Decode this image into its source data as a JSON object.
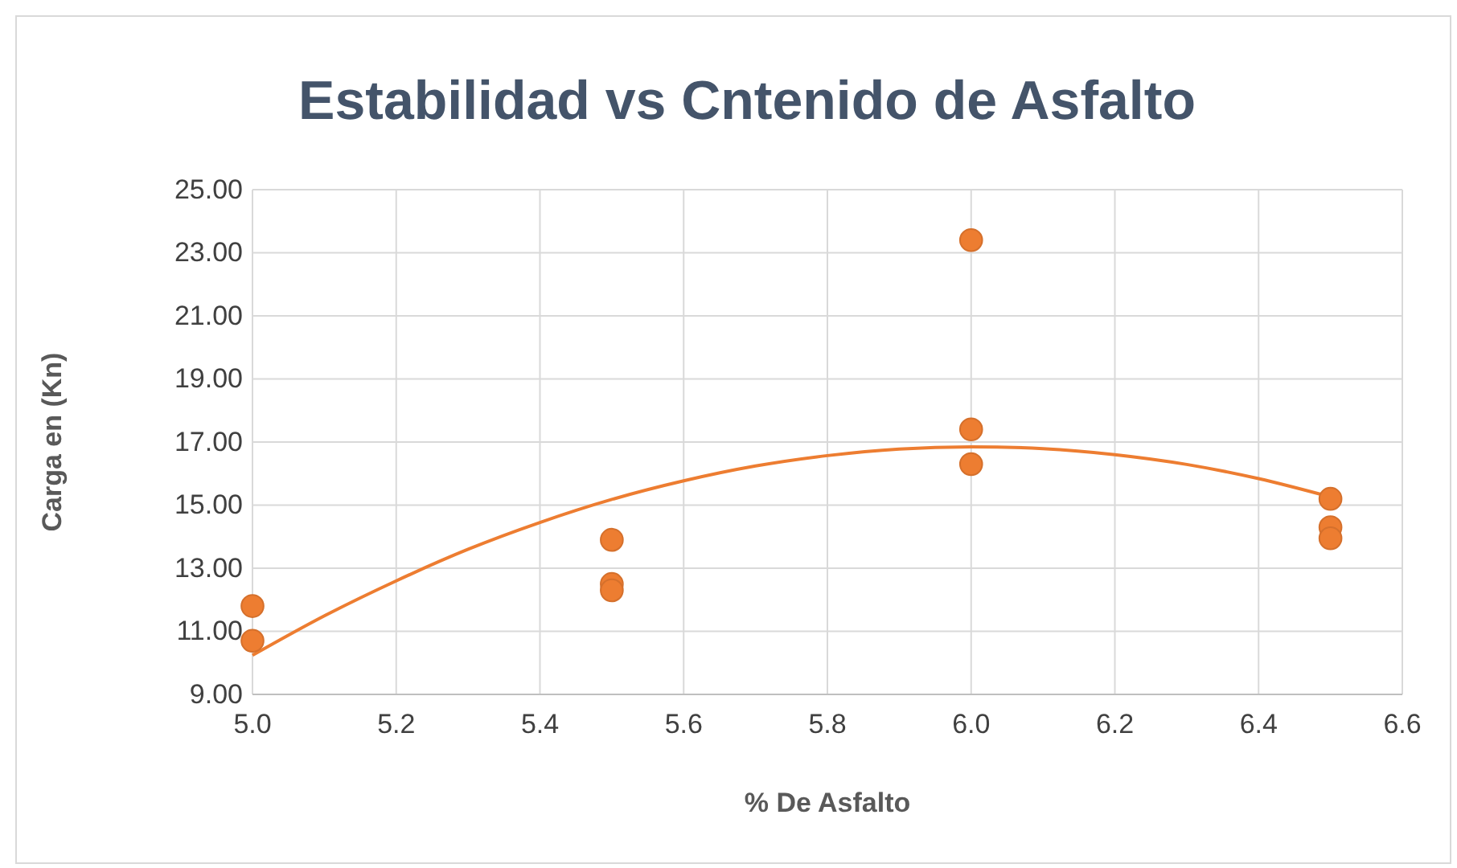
{
  "chart_data": {
    "type": "scatter",
    "title": "Estabilidad vs Cntenido de Asfalto",
    "xlabel": "% De Asfalto",
    "ylabel": "Carga en (Kn)",
    "xlim": [
      5.0,
      6.6
    ],
    "xticks": [
      {
        "value": 5.0,
        "label": "5.0"
      },
      {
        "value": 5.2,
        "label": "5.2"
      },
      {
        "value": 5.4,
        "label": "5.4"
      },
      {
        "value": 5.6,
        "label": "5.6"
      },
      {
        "value": 5.8,
        "label": "5.8"
      },
      {
        "value": 6.0,
        "label": "6.0"
      },
      {
        "value": 6.2,
        "label": "6.2"
      },
      {
        "value": 6.4,
        "label": "6.4"
      },
      {
        "value": 6.6,
        "label": "6.6"
      }
    ],
    "ylim": [
      9,
      25
    ],
    "yticks": [
      {
        "value": 9,
        "label": "9.00"
      },
      {
        "value": 11,
        "label": "11.00"
      },
      {
        "value": 13,
        "label": "13.00"
      },
      {
        "value": 15,
        "label": "15.00"
      },
      {
        "value": 17,
        "label": "17.00"
      },
      {
        "value": 19,
        "label": "19.00"
      },
      {
        "value": 21,
        "label": "21.00"
      },
      {
        "value": 23,
        "label": "23.00"
      },
      {
        "value": 25,
        "label": "25.00"
      }
    ],
    "grid": true,
    "marker": "circle",
    "series": [
      {
        "color": "#ed7d31",
        "x": [
          5.0,
          5.0,
          5.5,
          5.5,
          5.5,
          6.0,
          6.0,
          6.0,
          6.5,
          6.5,
          6.5
        ],
        "values": [
          11.8,
          10.7,
          13.9,
          12.5,
          12.3,
          23.4,
          17.4,
          16.3,
          15.2,
          14.3,
          13.95
        ]
      },
      {
        "type": "line",
        "color": "#ed7d31",
        "marker": "none",
        "x": [
          5.0,
          5.1,
          5.2,
          5.3,
          5.4,
          5.5,
          5.6,
          5.7,
          5.8,
          5.9,
          6.0,
          6.1,
          6.2,
          6.3,
          6.4,
          6.5
        ],
        "values": [
          10.24,
          11.49,
          12.6,
          13.6,
          14.45,
          15.18,
          15.77,
          16.24,
          16.57,
          16.78,
          16.85,
          16.79,
          16.6,
          16.29,
          15.84,
          15.26
        ]
      }
    ]
  }
}
